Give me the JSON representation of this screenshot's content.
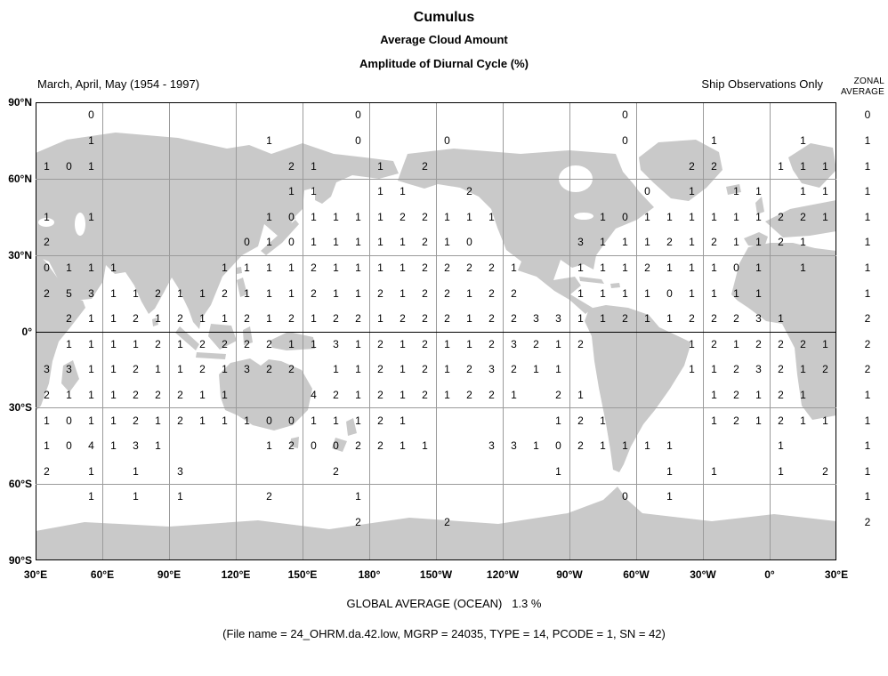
{
  "header": {
    "title": "Cumulus",
    "subtitle1": "Average Cloud Amount",
    "subtitle2": "Amplitude of Diurnal Cycle (%)",
    "period": "March, April, May (1954 - 1997)",
    "source": "Ship Observations Only",
    "zonal_line1": "ZONAL",
    "zonal_line2": "AVERAGE"
  },
  "footer": {
    "global_average": "GLOBAL AVERAGE (OCEAN)   1.3 %",
    "file_info": "(File name = 24_OHRM.da.42.low, MGRP = 24035, TYPE = 14, PCODE = 1, SN = 42)"
  },
  "chart_data": {
    "type": "heatmap",
    "title": "Cumulus - Average Cloud Amount - Amplitude of Diurnal Cycle (%)",
    "period": "March, April, May (1954 - 1997)",
    "source": "Ship Observations Only",
    "x_tick_labels": [
      "30°E",
      "60°E",
      "90°E",
      "120°E",
      "150°E",
      "180°",
      "150°W",
      "120°W",
      "90°W",
      "60°W",
      "30°W",
      "0°",
      "30°E"
    ],
    "y_tick_labels": [
      "90°N",
      "60°N",
      "30°N",
      "0°",
      "30°S",
      "60°S",
      "90°S"
    ],
    "cell_size_deg": 10,
    "lon_start_deg_east": 30,
    "lat_bands": [
      "80N-90N",
      "70N-80N",
      "60N-70N",
      "50N-60N",
      "40N-50N",
      "30N-40N",
      "20N-30N",
      "10N-20N",
      "0-10N",
      "0-10S",
      "10S-20S",
      "20S-30S",
      "30S-40S",
      "40S-50S",
      "50S-60S",
      "60S-70S",
      "70S-80S",
      "80S-90S"
    ],
    "grid_values": [
      "..0...........0...........0.........",
      "..1.......1...0...0.......0...1...1.",
      "101........21..1.2...........22..111",
      "...........11..11..2.......0.1.11.11",
      "1.1.......10111122111....10111111221",
      "2........01011111210....31112121121.",
      "0111....11112111122221..111211101.1.",
      "2531121121112112122122..111101111...",
      ".211212112121221222122331121122231..",
      ".111121222211312121123212....1212221",
      "331121121322.11212123211.....1123212",
      "211122211...4212121221.21.....12121.",
      "10112121110011121......121....121211",
      "104131....12002211..331021111....1..",
      "2.1.1.3......2.........1....1.1..1.2",
      "..1.1.1...2...1...........0.1.......",
      "..............2...2.................",
      "...................................."
    ],
    "zonal_averages": [
      "0",
      "1",
      "1",
      "1",
      "1",
      "1",
      "1",
      "1",
      "2",
      "2",
      "2",
      "1",
      "1",
      "1",
      "1",
      "1",
      "2",
      ""
    ],
    "global_average_ocean": "1.3 %",
    "colors": {
      "land": "#c9c9c9",
      "grid_line": "#9b9b9b",
      "axis_line": "#000000",
      "text": "#000000"
    },
    "legend_position": "right-zonal-average-column",
    "grid": true
  }
}
